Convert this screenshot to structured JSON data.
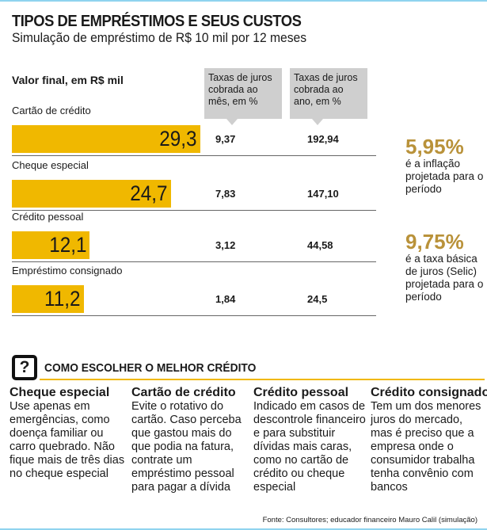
{
  "title": "TIPOS DE EMPRÉSTIMOS E SEUS CUSTOS",
  "subtitle": "Simulação de empréstimo de R$ 10 mil por 12 meses",
  "chart_data": {
    "type": "bar",
    "ylabel": "Valor final, em R$ mil",
    "categories": [
      "Cartão de crédito",
      "Cheque especial",
      "Crédito pessoal",
      "Empréstimo consignado"
    ],
    "values": [
      29.3,
      24.7,
      12.1,
      11.2
    ],
    "value_labels": [
      "29,3",
      "24,7",
      "12,1",
      "11,2"
    ],
    "bar_color": "#f0b800",
    "table": {
      "headers": [
        "Taxas de juros cobrada ao mês, em %",
        "Taxas de juros cobrada ao ano, em %"
      ],
      "monthly": [
        "9,37",
        "7,83",
        "3,12",
        "1,84"
      ],
      "yearly": [
        "192,94",
        "147,10",
        "44,58",
        "24,5"
      ]
    }
  },
  "side": {
    "inflation_value": "5,95%",
    "inflation_text": "é a inflação projetada para o período",
    "selic_value": "9,75%",
    "selic_text": "é a taxa básica de juros (Selic) projetada para o período",
    "accent": "#b9923a"
  },
  "section": {
    "icon": "question-icon",
    "icon_glyph": "?",
    "title": "COMO ESCOLHER O MELHOR CRÉDITO",
    "tips": [
      {
        "heading": "Cheque especial",
        "text": "Use apenas em emergências, como doença familiar ou carro quebrado. Não fique mais de três dias no cheque especial"
      },
      {
        "heading": "Cartão de crédito",
        "text": "Evite o rotativo do cartão. Caso perceba que gastou mais do que podia na fatura, contrate um empréstimo pessoal para pagar a dívida"
      },
      {
        "heading": "Crédito pessoal",
        "text": "Indicado em casos de descontrole financeiro e para substituir dívidas mais caras, como no cartão de crédito ou cheque especial"
      },
      {
        "heading": "Crédito consignado",
        "text": "Tem um dos menores juros do mercado, mas é preciso que a empresa onde o consumidor trabalha tenha convênio com bancos"
      }
    ]
  },
  "source": "Fonte: Consultores; educador financeiro Mauro Calil (simulação)"
}
